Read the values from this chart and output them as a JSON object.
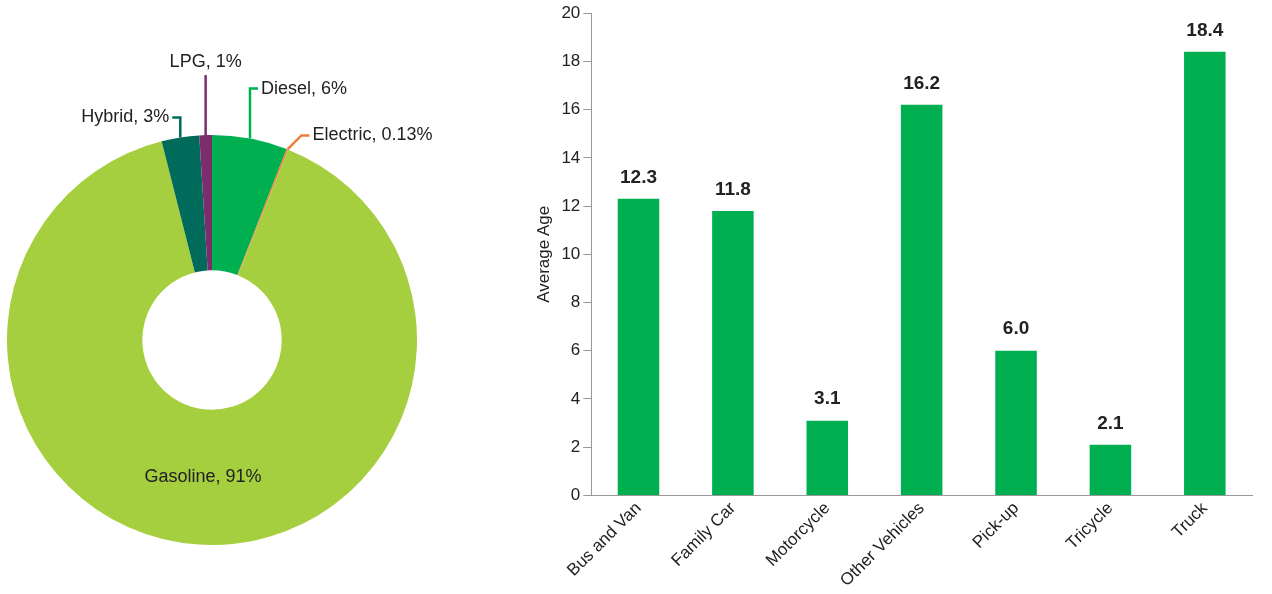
{
  "chart_data": [
    {
      "type": "donut",
      "categories": [
        "Diesel",
        "Electric",
        "Gasoline",
        "Hybrid",
        "LPG"
      ],
      "values": [
        6,
        0.13,
        91,
        3,
        1
      ],
      "value_labels": [
        "6%",
        "0.13%",
        "91%",
        "3%",
        "1%"
      ],
      "colors": [
        "#00b050",
        "#f47c3c",
        "#a5cf3f",
        "#006b5b",
        "#7b2d6e"
      ],
      "legend": false
    },
    {
      "type": "bar",
      "categories": [
        "Bus and Van",
        "Family Car",
        "Motorcycle",
        "Other Vehicles",
        "Pick-up",
        "Tricycle",
        "Truck"
      ],
      "values": [
        12.3,
        11.8,
        3.1,
        16.2,
        6.0,
        2.1,
        18.4
      ],
      "color": "#00b050",
      "ylabel": "Average Age",
      "ylim": [
        0,
        20
      ],
      "yticks": [
        0,
        2,
        4,
        6,
        8,
        10,
        12,
        14,
        16,
        18,
        20
      ],
      "value_labels": [
        "12.3",
        "11.8",
        "3.1",
        "16.2",
        "6.0",
        "2.1",
        "18.4"
      ],
      "grid": false,
      "legend": false
    }
  ]
}
